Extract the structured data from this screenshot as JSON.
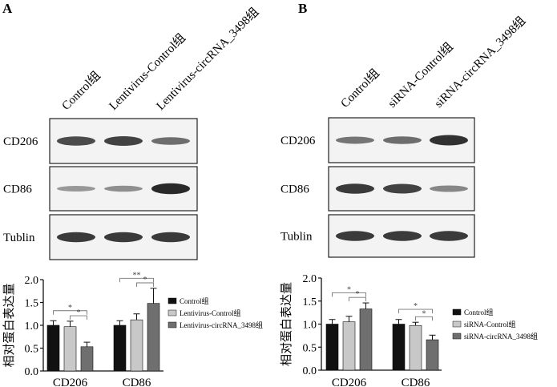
{
  "panels": [
    {
      "letter": "A",
      "lanes": [
        "Control组",
        "Lentivirus-Control组",
        "Lentivirus-circRNA_3498组"
      ],
      "blots": [
        {
          "label": "CD206",
          "intensity": [
            0.75,
            0.8,
            0.55
          ]
        },
        {
          "label": "CD86",
          "intensity": [
            0.3,
            0.35,
            0.95
          ]
        },
        {
          "label": "Tublin",
          "intensity": [
            0.85,
            0.85,
            0.85
          ]
        }
      ]
    },
    {
      "letter": "B",
      "lanes": [
        "Control组",
        "siRNA-Control组",
        "siRNA-circRNA_3498组"
      ],
      "blots": [
        {
          "label": "CD206",
          "intensity": [
            0.5,
            0.55,
            0.9
          ]
        },
        {
          "label": "CD86",
          "intensity": [
            0.85,
            0.8,
            0.4
          ]
        },
        {
          "label": "Tublin",
          "intensity": [
            0.85,
            0.85,
            0.85
          ]
        }
      ]
    }
  ],
  "chart_data": [
    {
      "type": "bar",
      "ylabel": "相对蛋白表达量",
      "ylim": [
        0,
        2.0
      ],
      "yticks": [
        "0.0",
        "0.5",
        "1.0",
        "1.5",
        "2.0"
      ],
      "categories": [
        "CD206",
        "CD86"
      ],
      "series": [
        {
          "name": "Control组",
          "color": "#111111",
          "values": [
            1.0,
            1.0
          ],
          "errors": [
            0.1,
            0.1
          ]
        },
        {
          "name": "Lentivirus-Control组",
          "color": "#c8c8c8",
          "values": [
            0.97,
            1.12
          ],
          "errors": [
            0.12,
            0.13
          ]
        },
        {
          "name": "Lentivirus-circRNA_3498组",
          "color": "#6f6f6f",
          "values": [
            0.53,
            1.48
          ],
          "errors": [
            0.1,
            0.33
          ]
        }
      ],
      "significance": [
        {
          "category": 0,
          "from": 0,
          "to": 2,
          "label": "*"
        },
        {
          "category": 0,
          "from": 1,
          "to": 2,
          "label": "*"
        },
        {
          "category": 1,
          "from": 0,
          "to": 2,
          "label": "**"
        },
        {
          "category": 1,
          "from": 1,
          "to": 2,
          "label": "*"
        }
      ],
      "legend": "right"
    },
    {
      "type": "bar",
      "ylabel": "相对蛋白表达量",
      "ylim": [
        0,
        2.0
      ],
      "yticks": [
        "0.0",
        "0.5",
        "1.0",
        "1.5",
        "2.0"
      ],
      "categories": [
        "CD206",
        "CD86"
      ],
      "series": [
        {
          "name": "Control组",
          "color": "#111111",
          "values": [
            1.0,
            1.0
          ],
          "errors": [
            0.1,
            0.1
          ]
        },
        {
          "name": "siRNA-Control组",
          "color": "#c8c8c8",
          "values": [
            1.05,
            0.97
          ],
          "errors": [
            0.12,
            0.07
          ]
        },
        {
          "name": "siRNA-circRNA_3498组",
          "color": "#6f6f6f",
          "values": [
            1.33,
            0.66
          ],
          "errors": [
            0.13,
            0.1
          ]
        }
      ],
      "significance": [
        {
          "category": 0,
          "from": 0,
          "to": 2,
          "label": "*"
        },
        {
          "category": 0,
          "from": 1,
          "to": 2,
          "label": "*"
        },
        {
          "category": 1,
          "from": 0,
          "to": 2,
          "label": "*"
        },
        {
          "category": 1,
          "from": 1,
          "to": 2,
          "label": "*"
        }
      ],
      "legend": "right"
    }
  ]
}
